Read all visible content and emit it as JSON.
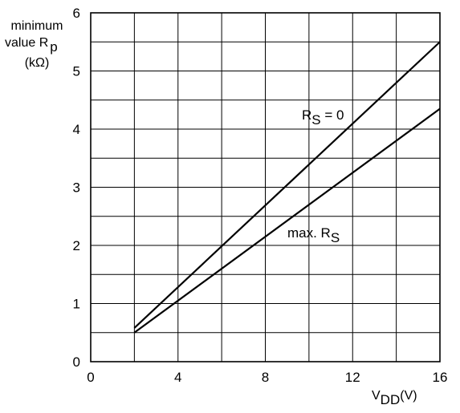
{
  "chart_data": {
    "type": "line",
    "ylabel_lines": [
      "minimum",
      "value R",
      "(kΩ)"
    ],
    "ylabel_sub": "p",
    "xlabel_main": "V",
    "xlabel_sub": "DD",
    "xlabel_unit": "(V)",
    "xlim": [
      0,
      16
    ],
    "ylim": [
      0,
      6
    ],
    "x_ticks": [
      0,
      4,
      8,
      12,
      16
    ],
    "y_ticks": [
      0,
      1,
      2,
      3,
      4,
      5,
      6
    ],
    "grid": true,
    "series": [
      {
        "label_main": "R",
        "label_sub": "S",
        "label_tail": " = 0",
        "x": [
          2,
          16
        ],
        "y": [
          0.58,
          5.5
        ]
      },
      {
        "label_main": "max. R",
        "label_sub": "S",
        "label_tail": "",
        "x": [
          2,
          16
        ],
        "y": [
          0.5,
          4.35
        ]
      }
    ]
  }
}
